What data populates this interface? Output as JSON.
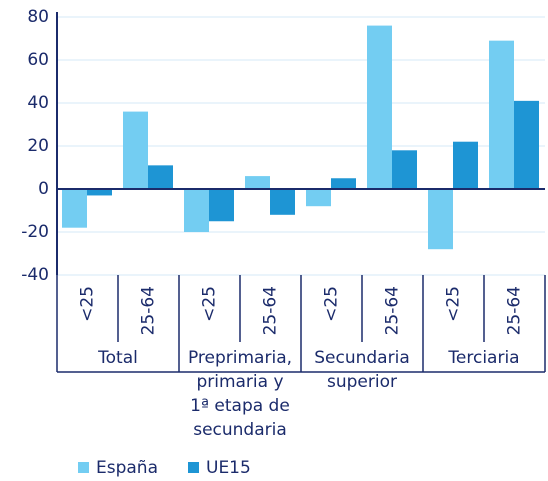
{
  "chart_data": {
    "type": "bar",
    "categories": [
      "<25",
      "25-64",
      "<25",
      "25-64",
      "<25",
      "25-64",
      "<25",
      "25-64"
    ],
    "groups": [
      [
        "Total"
      ],
      [
        "Preprimaria,",
        "primaria y",
        "1ª etapa de",
        "secundaria"
      ],
      [
        "Secundaria",
        "superior"
      ],
      [
        "Terciaria"
      ]
    ],
    "series": [
      {
        "name": "España",
        "color": "#73cdf2",
        "values": [
          -18,
          36,
          -20,
          6,
          -8,
          76,
          -28,
          69
        ]
      },
      {
        "name": "UE15",
        "color": "#1e95d4",
        "values": [
          -3,
          11,
          -15,
          -12,
          5,
          18,
          22,
          41
        ]
      }
    ],
    "ylim": [
      -40,
      80
    ],
    "yticks": [
      -40,
      -20,
      0,
      20,
      40,
      60,
      80
    ],
    "grid": true
  }
}
